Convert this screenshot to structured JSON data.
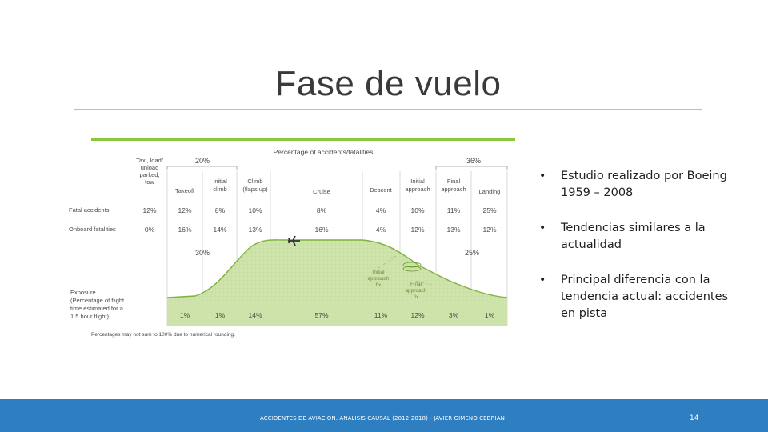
{
  "slide": {
    "title": "Fase de vuelo",
    "footer_text": "ACCIDENTES DE AVIACION. ANALISIS CAUSAL (2012-2018) - JAVIER GIMENO CEBRIAN",
    "page_number": "14",
    "bullets": [
      "Estudio realizado por Boeing 1959 – 2008",
      "Tendencias similares a la actualidad",
      "Principal diferencia con la tendencia actual: accidentes en pista"
    ],
    "bullet_symbol": "•"
  },
  "figure": {
    "header": "Percentage of accidents/fatalities",
    "group_left_pct": "20%",
    "group_right_pct": "36%",
    "phases": [
      "Taxi, load/ unload parked, tow",
      "Takeoff",
      "Initial climb",
      "Climb (flaps up)",
      "Cruise",
      "Descent",
      "Initial approach",
      "Final approach",
      "Landing"
    ],
    "row_fatal_label": "Fatal accidents",
    "row_onboard_label": "Onboard fatalities",
    "fatal_accidents": [
      "12%",
      "12%",
      "8%",
      "10%",
      "8%",
      "4%",
      "10%",
      "11%",
      "25%"
    ],
    "onboard_fatalities": [
      "0%",
      "16%",
      "14%",
      "13%",
      "16%",
      "4%",
      "12%",
      "13%",
      "12%"
    ],
    "group_left_fatal_pct": "30%",
    "group_right_fatal_pct": "25%",
    "exposure_label": "Exposure (Percentage of flight time estimated for a 1.5 hour flight)",
    "exposure": [
      "1%",
      "1%",
      "14%",
      "57%",
      "11%",
      "12%",
      "3%",
      "1%"
    ],
    "initial_fix_label": "Initial approach fix",
    "final_fix_label": "Final approach fix",
    "footnote": "Percentages may not sum to 100% due to numerical rounding.",
    "colors": {
      "green": "#8dc63f",
      "fill": "#cfe3ac",
      "text": "#4a4a4a"
    }
  }
}
